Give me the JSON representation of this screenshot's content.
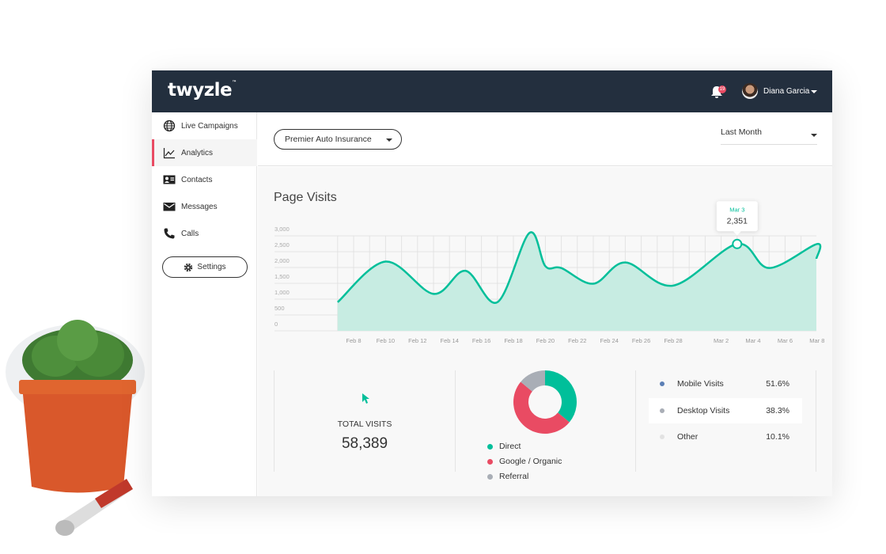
{
  "header": {
    "logo": "twyzle",
    "logo_tm": "™",
    "notifications": "19",
    "user": "Diana Garcia"
  },
  "sidebar": {
    "items": [
      {
        "label": "Live Campaigns",
        "icon": "globe-icon"
      },
      {
        "label": "Analytics",
        "icon": "chart-line-icon",
        "active": true
      },
      {
        "label": "Contacts",
        "icon": "contact-card-icon"
      },
      {
        "label": "Messages",
        "icon": "envelope-icon"
      },
      {
        "label": "Calls",
        "icon": "phone-icon"
      }
    ],
    "settings": "Settings"
  },
  "toolbar": {
    "campaign": "Premier Auto Insurance",
    "period": "Last Month"
  },
  "colors": {
    "accent": "#00bf9a",
    "header": "#232f3e",
    "active": "#e94b63",
    "referral": "#a9aeb6"
  },
  "page_title": "Page Visits",
  "chart_data": [
    {
      "type": "area",
      "ylim": [
        0,
        3000
      ],
      "yticks": [
        "0",
        "500",
        "1,000",
        "1,500",
        "2,000",
        "2,500",
        "3,000"
      ],
      "xticks": [
        "Feb 8",
        "Feb 10",
        "Feb 12",
        "Feb 14",
        "Feb 16",
        "Feb 18",
        "Feb 20",
        "Feb 22",
        "Feb 24",
        "Feb 26",
        "Feb 28",
        "Mar 2",
        "Mar 4",
        "Mar 6",
        "Mar 8"
      ],
      "x": [
        "Feb 7",
        "Feb 10",
        "Feb 13",
        "Feb 15",
        "Feb 17",
        "Feb 19",
        "Feb 20",
        "Feb 21",
        "Feb 23",
        "Feb 25",
        "Feb 28",
        "Mar 3",
        "Mar 5",
        "Mar 8",
        "Mar 9"
      ],
      "values": [
        775,
        1875,
        1000,
        1625,
        775,
        2650,
        1750,
        1700,
        1275,
        1850,
        1225,
        2351,
        1700,
        2350,
        1950
      ],
      "tooltip": {
        "label": "Mar 3",
        "value": "2,351"
      },
      "grid": true
    },
    {
      "type": "pie",
      "donut": true,
      "categories": [
        "Direct",
        "Google / Organic",
        "Referral"
      ],
      "values": [
        36,
        50,
        14
      ],
      "colors": [
        "#00bf9a",
        "#e94b63",
        "#a9aeb6"
      ]
    }
  ],
  "total": {
    "label": "TOTAL VISITS",
    "value": "58,389"
  },
  "devices": [
    {
      "label": "Mobile Visits",
      "pct": "51.6%",
      "color": "#5b7fb5"
    },
    {
      "label": "Desktop Visits",
      "pct": "38.3%",
      "color": "#a9aeb6"
    },
    {
      "label": "Other",
      "pct": "10.1%",
      "color": "#e2e2e2"
    }
  ]
}
